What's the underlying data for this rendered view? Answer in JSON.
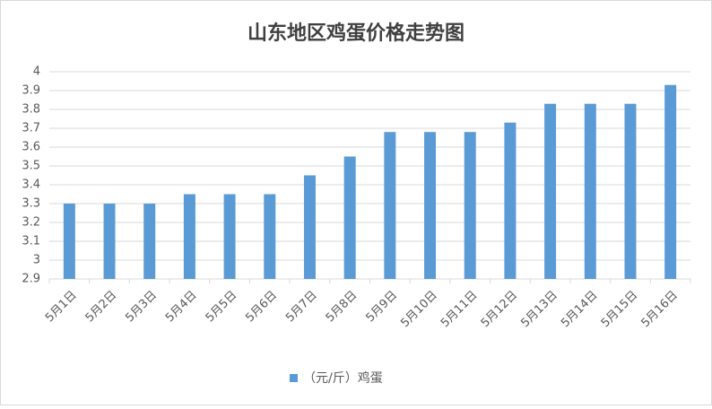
{
  "chart_data": {
    "type": "bar",
    "title": "山东地区鸡蛋价格走势图",
    "categories": [
      "5月1日",
      "5月2日",
      "5月3日",
      "5月4日",
      "5月5日",
      "5月6日",
      "5月7日",
      "5月8日",
      "5月9日",
      "5月10日",
      "5月11日",
      "5月12日",
      "5月13日",
      "5月14日",
      "5月15日",
      "5月16日"
    ],
    "series": [
      {
        "name": "（元/斤）鸡蛋",
        "color": "#5b9bd5",
        "values": [
          3.3,
          3.3,
          3.3,
          3.35,
          3.35,
          3.35,
          3.45,
          3.55,
          3.68,
          3.68,
          3.68,
          3.73,
          3.83,
          3.83,
          3.83,
          3.93
        ]
      }
    ],
    "ylim": [
      2.9,
      4
    ],
    "yticks": [
      2.9,
      3,
      3.1,
      3.2,
      3.3,
      3.4,
      3.5,
      3.6,
      3.7,
      3.8,
      3.9,
      4
    ],
    "grid": true,
    "legend": "bottom"
  }
}
